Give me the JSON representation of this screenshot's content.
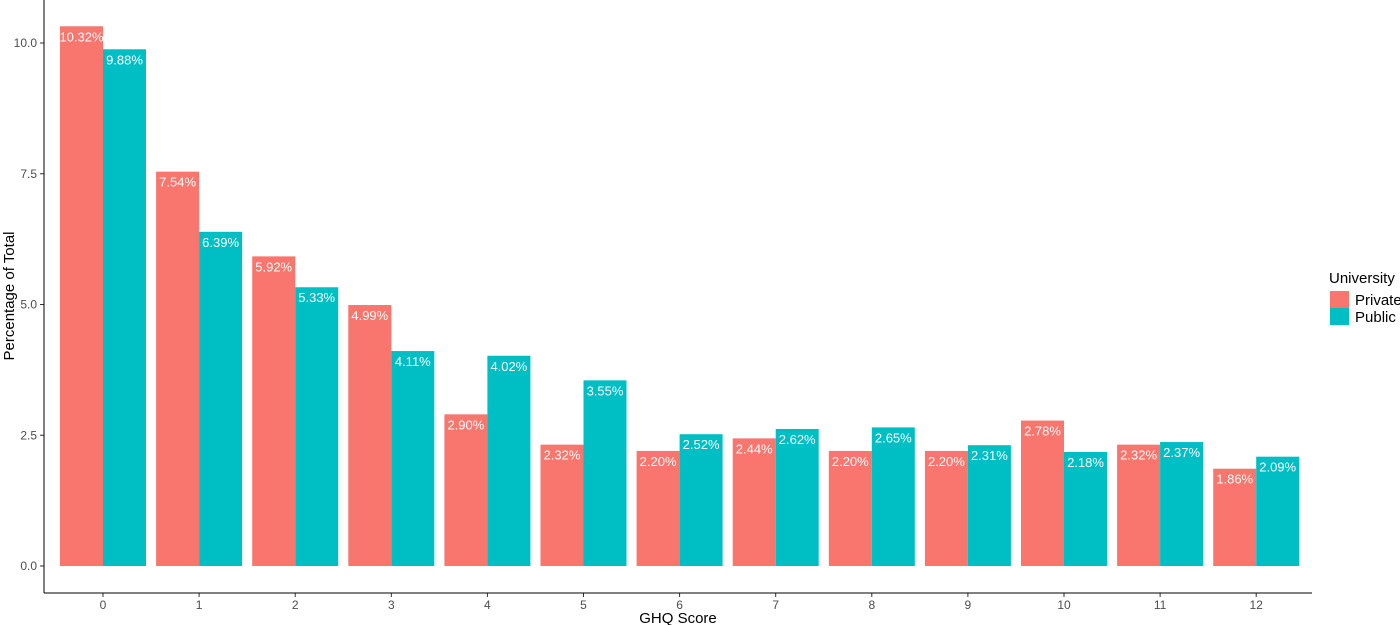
{
  "chart_data": {
    "type": "bar",
    "xlabel": "GHQ Score",
    "ylabel": "Percentage of Total",
    "ylim": [
      0,
      10.5
    ],
    "yticks": [
      "0.0",
      "2.5",
      "5.0",
      "7.5",
      "10.0"
    ],
    "grid": false,
    "legend": {
      "title": "University",
      "position": "right"
    },
    "categories": [
      "0",
      "1",
      "2",
      "3",
      "4",
      "5",
      "6",
      "7",
      "8",
      "9",
      "10",
      "11",
      "12"
    ],
    "series": [
      {
        "name": "Private",
        "color": "#F8766D",
        "values": [
          10.32,
          7.54,
          5.92,
          4.99,
          2.9,
          2.32,
          2.2,
          2.44,
          2.2,
          2.2,
          2.78,
          2.32,
          1.86
        ],
        "labels": [
          "10.32%",
          "7.54%",
          "5.92%",
          "4.99%",
          "2.90%",
          "2.32%",
          "2.20%",
          "2.44%",
          "2.20%",
          "2.20%",
          "2.78%",
          "2.32%",
          "1.86%"
        ]
      },
      {
        "name": "Public",
        "color": "#00BFC4",
        "values": [
          9.88,
          6.39,
          5.33,
          4.11,
          4.02,
          3.55,
          2.52,
          2.62,
          2.65,
          2.31,
          2.18,
          2.37,
          2.09
        ],
        "labels": [
          "9.88%",
          "6.39%",
          "5.33%",
          "4.11%",
          "4.02%",
          "3.55%",
          "2.52%",
          "2.62%",
          "2.65%",
          "2.31%",
          "2.18%",
          "2.37%",
          "2.09%"
        ]
      }
    ]
  }
}
